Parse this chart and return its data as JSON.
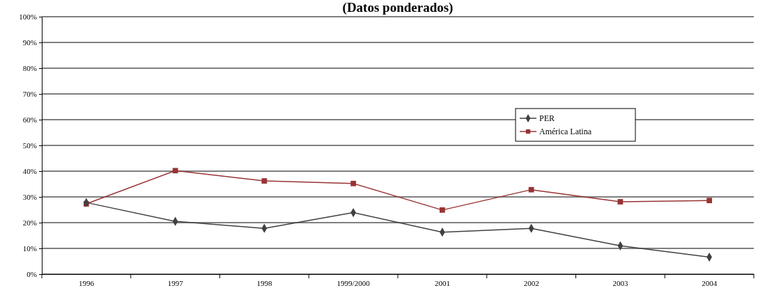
{
  "chart_data": {
    "type": "line",
    "title": "(Datos ponderados)",
    "categories": [
      "1996",
      "1997",
      "1998",
      "1999/2000",
      "2001",
      "2002",
      "2003",
      "2004"
    ],
    "series": [
      {
        "name": "PER",
        "color": "#404040",
        "marker": "diamond",
        "values": [
          27.8,
          20.5,
          17.8,
          23.9,
          16.3,
          17.8,
          11.0,
          6.6
        ]
      },
      {
        "name": "América Latina",
        "color": "#993333",
        "marker": "square",
        "values": [
          27.3,
          40.2,
          36.2,
          35.2,
          24.9,
          32.8,
          28.1,
          28.6
        ]
      }
    ],
    "ylim": [
      0,
      100
    ],
    "yticks": [
      {
        "value": 0,
        "label": "0%"
      },
      {
        "value": 10,
        "label": "10%"
      },
      {
        "value": 20,
        "label": "20%"
      },
      {
        "value": 30,
        "label": "30%"
      },
      {
        "value": 40,
        "label": "40%"
      },
      {
        "value": 50,
        "label": "50%"
      },
      {
        "value": 60,
        "label": "60%"
      },
      {
        "value": 70,
        "label": "70%"
      },
      {
        "value": 80,
        "label": "80%"
      },
      {
        "value": 90,
        "label": "90%"
      },
      {
        "value": 100,
        "label": "100%"
      }
    ],
    "grid": "y",
    "legend": "right",
    "line_style": "solid"
  }
}
